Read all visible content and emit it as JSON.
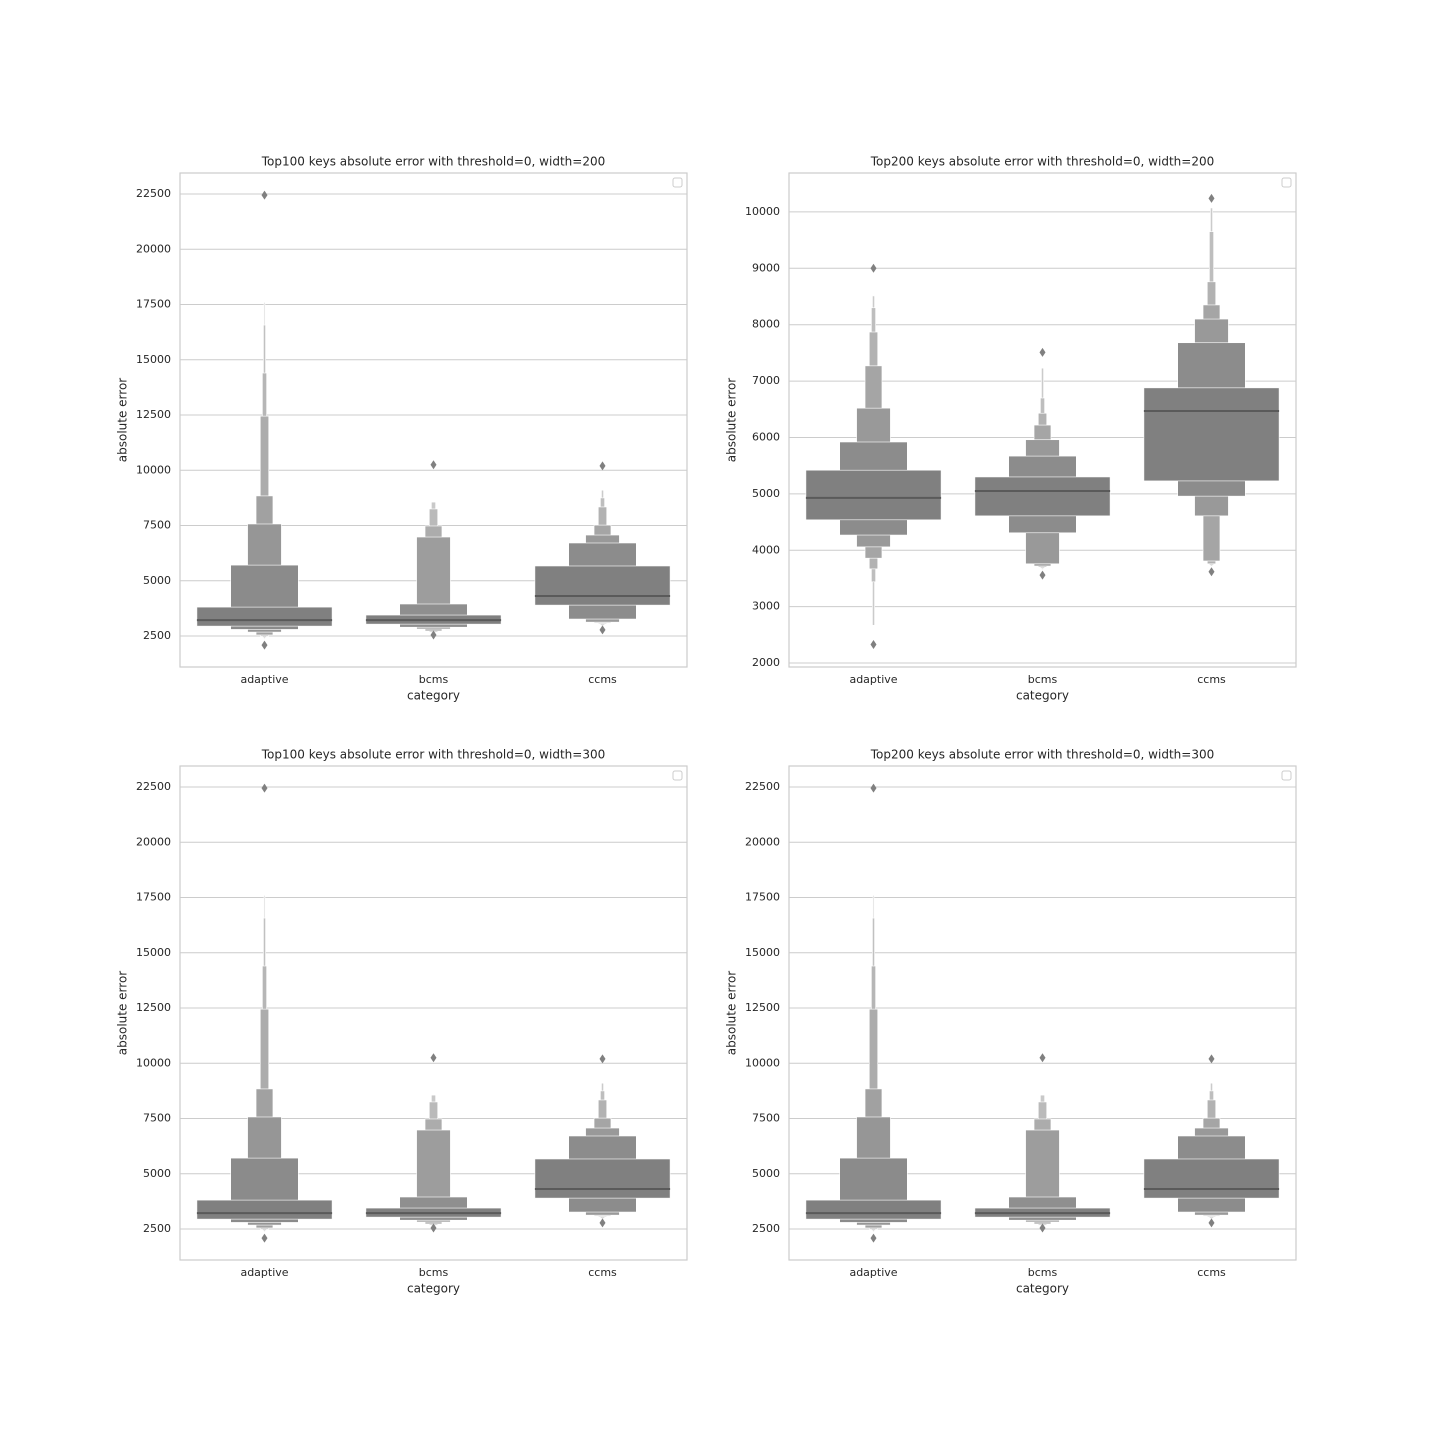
{
  "chart_data": [
    {
      "type": "boxen",
      "title": "Top100 keys absolute error with threshold=0, width=200",
      "x_label": "category",
      "y_label": "absolute error",
      "categories": [
        "adaptive",
        "bcms",
        "ccms"
      ],
      "ylim": [
        1100,
        23450
      ],
      "yticks": [
        2500,
        5000,
        7500,
        10000,
        12500,
        15000,
        17500,
        20000,
        22500
      ],
      "grid": true,
      "color": "#808080",
      "median_color": "#5a5a5a",
      "boxes": [
        {
          "median": 3220,
          "levels": [
            [
              2950,
              3810
            ],
            [
              2800,
              5710
            ],
            [
              2680,
              7570
            ],
            [
              2550,
              8840
            ],
            [
              2500,
              12450
            ],
            [
              2450,
              14400
            ],
            [
              2400,
              16570
            ],
            [
              2350,
              17600
            ]
          ],
          "outliers": [
            22450,
            2090
          ]
        },
        {
          "median": 3220,
          "levels": [
            [
              3040,
              3450
            ],
            [
              2900,
              3950
            ],
            [
              2820,
              6980
            ],
            [
              2730,
              7480
            ],
            [
              2680,
              8250
            ],
            [
              2630,
              8560
            ]
          ],
          "outliers": [
            10250,
            2550
          ]
        },
        {
          "median": 4310,
          "levels": [
            [
              3900,
              5670
            ],
            [
              3270,
              6710
            ],
            [
              3130,
              7070
            ],
            [
              3090,
              7520
            ],
            [
              3050,
              8340
            ],
            [
              3000,
              8750
            ],
            [
              2950,
              9100
            ]
          ],
          "outliers": [
            10200,
            2780
          ]
        }
      ]
    },
    {
      "type": "boxen",
      "title": "Top200 keys absolute error with threshold=0, width=200",
      "x_label": "category",
      "y_label": "absolute error",
      "categories": [
        "adaptive",
        "bcms",
        "ccms"
      ],
      "ylim": [
        1930,
        10690
      ],
      "yticks": [
        2000,
        3000,
        4000,
        5000,
        6000,
        7000,
        8000,
        9000,
        10000
      ],
      "grid": true,
      "color": "#808080",
      "median_color": "#5a5a5a",
      "boxes": [
        {
          "median": 4930,
          "levels": [
            [
              4540,
              5420
            ],
            [
              4270,
              5920
            ],
            [
              4060,
              6520
            ],
            [
              3860,
              7270
            ],
            [
              3670,
              7870
            ],
            [
              3440,
              8300
            ],
            [
              2670,
              8510
            ]
          ],
          "outliers": [
            9000,
            2330
          ]
        },
        {
          "median": 5050,
          "levels": [
            [
              4610,
              5300
            ],
            [
              4310,
              5670
            ],
            [
              3760,
              5960
            ],
            [
              3720,
              6220
            ],
            [
              3700,
              6430
            ],
            [
              3680,
              6700
            ],
            [
              3660,
              7230
            ]
          ],
          "outliers": [
            7510,
            3560
          ]
        },
        {
          "median": 6470,
          "levels": [
            [
              5230,
              6880
            ],
            [
              4960,
              7680
            ],
            [
              4610,
              8100
            ],
            [
              3810,
              8350
            ],
            [
              3760,
              8760
            ],
            [
              3740,
              9650
            ],
            [
              3720,
              10070
            ]
          ],
          "outliers": [
            10240,
            3620
          ]
        }
      ]
    },
    {
      "type": "boxen",
      "title": "Top100 keys absolute error with threshold=0, width=300",
      "x_label": "category",
      "y_label": "absolute error",
      "categories": [
        "adaptive",
        "bcms",
        "ccms"
      ],
      "ylim": [
        1100,
        23450
      ],
      "yticks": [
        2500,
        5000,
        7500,
        10000,
        12500,
        15000,
        17500,
        20000,
        22500
      ],
      "grid": true,
      "color": "#808080",
      "median_color": "#5a5a5a",
      "boxes": [
        {
          "median": 3220,
          "levels": [
            [
              2950,
              3810
            ],
            [
              2800,
              5710
            ],
            [
              2680,
              7570
            ],
            [
              2550,
              8840
            ],
            [
              2500,
              12450
            ],
            [
              2450,
              14400
            ],
            [
              2400,
              16570
            ],
            [
              2350,
              17600
            ]
          ],
          "outliers": [
            22450,
            2090
          ]
        },
        {
          "median": 3220,
          "levels": [
            [
              3040,
              3450
            ],
            [
              2900,
              3950
            ],
            [
              2820,
              6980
            ],
            [
              2730,
              7480
            ],
            [
              2680,
              8250
            ],
            [
              2630,
              8560
            ]
          ],
          "outliers": [
            10250,
            2550
          ]
        },
        {
          "median": 4310,
          "levels": [
            [
              3900,
              5670
            ],
            [
              3270,
              6710
            ],
            [
              3130,
              7070
            ],
            [
              3090,
              7520
            ],
            [
              3050,
              8340
            ],
            [
              3000,
              8750
            ],
            [
              2950,
              9100
            ]
          ],
          "outliers": [
            10200,
            2780
          ]
        }
      ]
    },
    {
      "type": "boxen",
      "title": "Top200 keys absolute error with threshold=0, width=300",
      "x_label": "category",
      "y_label": "absolute error",
      "categories": [
        "adaptive",
        "bcms",
        "ccms"
      ],
      "ylim": [
        1100,
        23450
      ],
      "yticks": [
        2500,
        5000,
        7500,
        10000,
        12500,
        15000,
        17500,
        20000,
        22500
      ],
      "grid": true,
      "color": "#808080",
      "median_color": "#5a5a5a",
      "boxes": [
        {
          "median": 3220,
          "levels": [
            [
              2950,
              3810
            ],
            [
              2800,
              5710
            ],
            [
              2680,
              7570
            ],
            [
              2550,
              8840
            ],
            [
              2500,
              12450
            ],
            [
              2450,
              14400
            ],
            [
              2400,
              16570
            ],
            [
              2350,
              17600
            ]
          ],
          "outliers": [
            22450,
            2090
          ]
        },
        {
          "median": 3220,
          "levels": [
            [
              3040,
              3450
            ],
            [
              2900,
              3950
            ],
            [
              2820,
              6980
            ],
            [
              2730,
              7480
            ],
            [
              2680,
              8250
            ],
            [
              2630,
              8560
            ]
          ],
          "outliers": [
            10250,
            2550
          ]
        },
        {
          "median": 4310,
          "levels": [
            [
              3900,
              5670
            ],
            [
              3270,
              6710
            ],
            [
              3130,
              7070
            ],
            [
              3090,
              7520
            ],
            [
              3050,
              8340
            ],
            [
              3000,
              8750
            ],
            [
              2950,
              9100
            ]
          ],
          "outliers": [
            10200,
            2780
          ]
        }
      ]
    }
  ]
}
